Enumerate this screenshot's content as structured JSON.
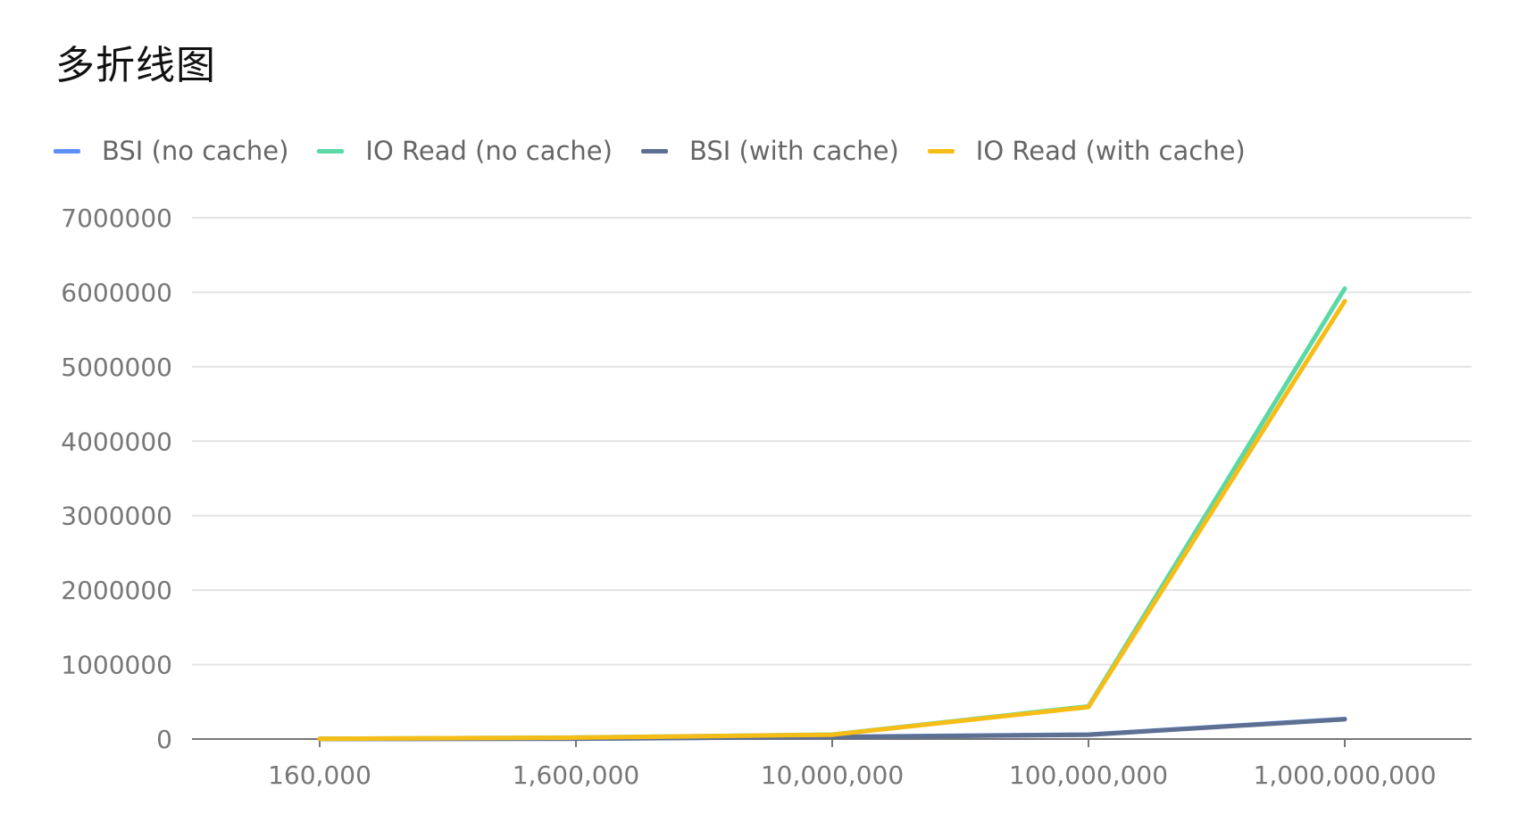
{
  "title": "多折线图",
  "chart_data": {
    "type": "line",
    "title": "多折线图",
    "categories": [
      "160,000",
      "1,600,000",
      "10,000,000",
      "100,000,000",
      "1,000,000,000"
    ],
    "y_ticks": [
      "0",
      "1000000",
      "2000000",
      "3000000",
      "4000000",
      "5000000",
      "6000000",
      "7000000"
    ],
    "ylim": [
      0,
      7000000
    ],
    "grid": true,
    "legend_position": "top-left",
    "series": [
      {
        "name": "BSI (no cache)",
        "color": "#5b8ff9",
        "values": [
          1000,
          5000,
          30000,
          60000,
          270000
        ]
      },
      {
        "name": "IO Read (no cache)",
        "color": "#5ad8a6",
        "values": [
          3000,
          20000,
          60000,
          440000,
          6050000
        ]
      },
      {
        "name": "BSI (with cache)",
        "color": "#5d7092",
        "values": [
          1000,
          5000,
          28000,
          58000,
          265000
        ]
      },
      {
        "name": "IO Read (with cache)",
        "color": "#f6bd16",
        "values": [
          3000,
          19000,
          58000,
          430000,
          5880000
        ]
      }
    ]
  }
}
